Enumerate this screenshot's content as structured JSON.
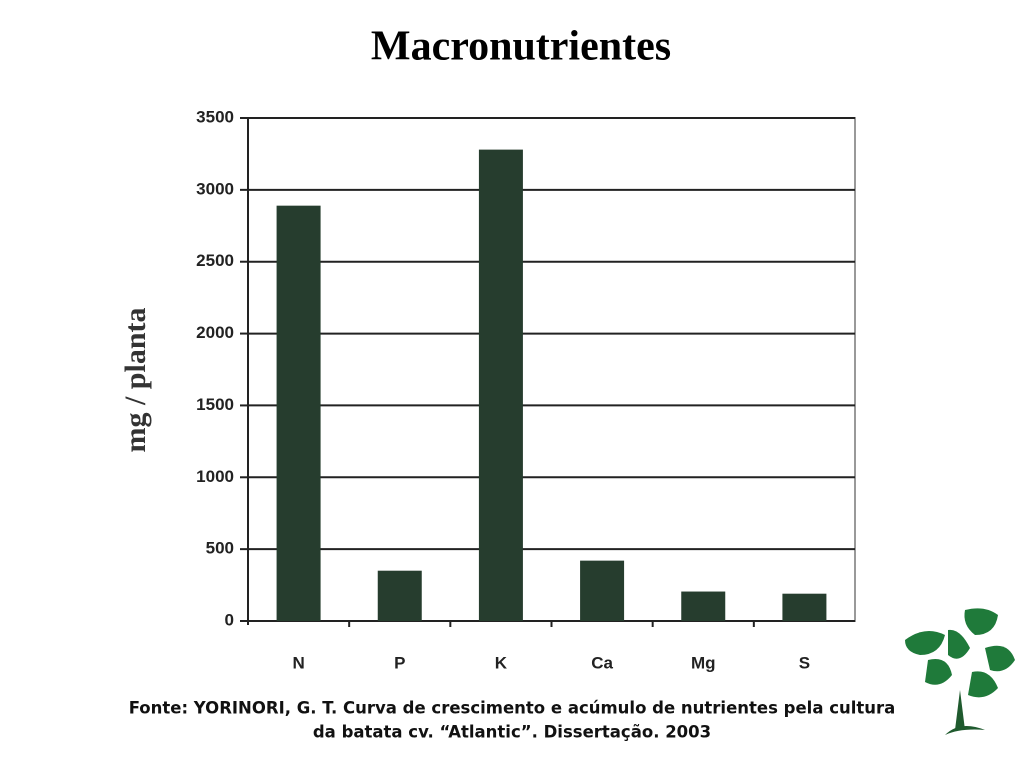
{
  "chart_data": {
    "type": "bar",
    "title": "Macronutrientes",
    "y_label": "mg / planta",
    "categories": [
      "N",
      "P",
      "K",
      "Ca",
      "Mg",
      "S"
    ],
    "values": [
      2890,
      350,
      3280,
      420,
      205,
      190
    ],
    "color": "#263d2e",
    "ylim": [
      0,
      3500
    ],
    "yticks": [
      0,
      500,
      1000,
      1500,
      2000,
      2500,
      3000,
      3500
    ],
    "grid": true,
    "source": [
      "Fonte: YORINORI, G. T. Curva de crescimento e acúmulo de nutrientes pela cultura",
      "da batata cv. “Atlantic”. Dissertação. 2003"
    ]
  }
}
